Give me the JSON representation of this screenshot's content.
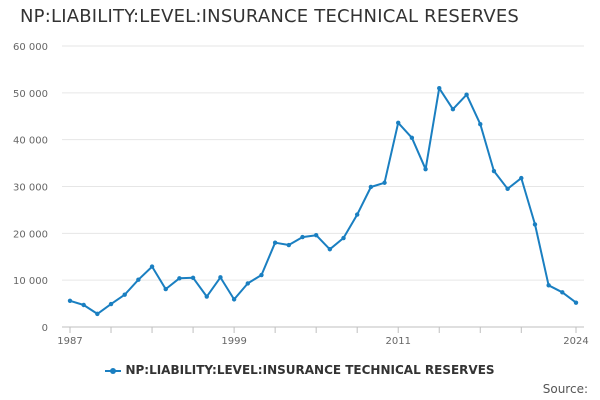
{
  "chart_data": {
    "type": "line",
    "title": "NP:LIABILITY:LEVEL:INSURANCE TECHNICAL RESERVES",
    "xlabel": "",
    "ylabel": "",
    "ylim": [
      0,
      60000
    ],
    "y_ticks": [
      0,
      10000,
      20000,
      30000,
      40000,
      50000,
      60000
    ],
    "y_tick_labels": [
      "0",
      "10 000",
      "20 000",
      "30 000",
      "40 000",
      "50 000",
      "60 000"
    ],
    "x_range": [
      1987,
      2024
    ],
    "x_tick_labels": [
      {
        "year": 1987,
        "label": "1987"
      },
      {
        "year": 1999,
        "label": "1999"
      },
      {
        "year": 2011,
        "label": "2011"
      },
      {
        "year": 2024,
        "label": "2024"
      }
    ],
    "minor_tick_years": [
      1987,
      1990,
      1993,
      1996,
      1999,
      2002,
      2005,
      2008,
      2011,
      2014,
      2017,
      2020,
      2024
    ],
    "series": [
      {
        "name": "NP:LIABILITY:LEVEL:INSURANCE TECHNICAL RESERVES",
        "color": "#1a7fc1",
        "x": [
          1987,
          1988,
          1989,
          1990,
          1991,
          1992,
          1993,
          1994,
          1995,
          1996,
          1997,
          1998,
          1999,
          2000,
          2001,
          2002,
          2003,
          2004,
          2005,
          2006,
          2007,
          2008,
          2009,
          2010,
          2011,
          2012,
          2013,
          2014,
          2015,
          2016,
          2017,
          2018,
          2019,
          2020,
          2021,
          2022,
          2023,
          2024
        ],
        "values": [
          5600,
          4700,
          2800,
          4900,
          6900,
          10100,
          12900,
          8100,
          10400,
          10500,
          6500,
          10600,
          5900,
          9300,
          11100,
          18000,
          17500,
          19200,
          19600,
          16600,
          19000,
          24000,
          29900,
          30800,
          43600,
          40400,
          33700,
          51000,
          46500,
          49600,
          43300,
          33300,
          29500,
          31800,
          21900,
          8900,
          7400,
          5200
        ]
      }
    ],
    "legend": {
      "label": "NP:LIABILITY:LEVEL:INSURANCE TECHNICAL RESERVES",
      "position": "bottom-center"
    },
    "source_label": "Source:"
  }
}
